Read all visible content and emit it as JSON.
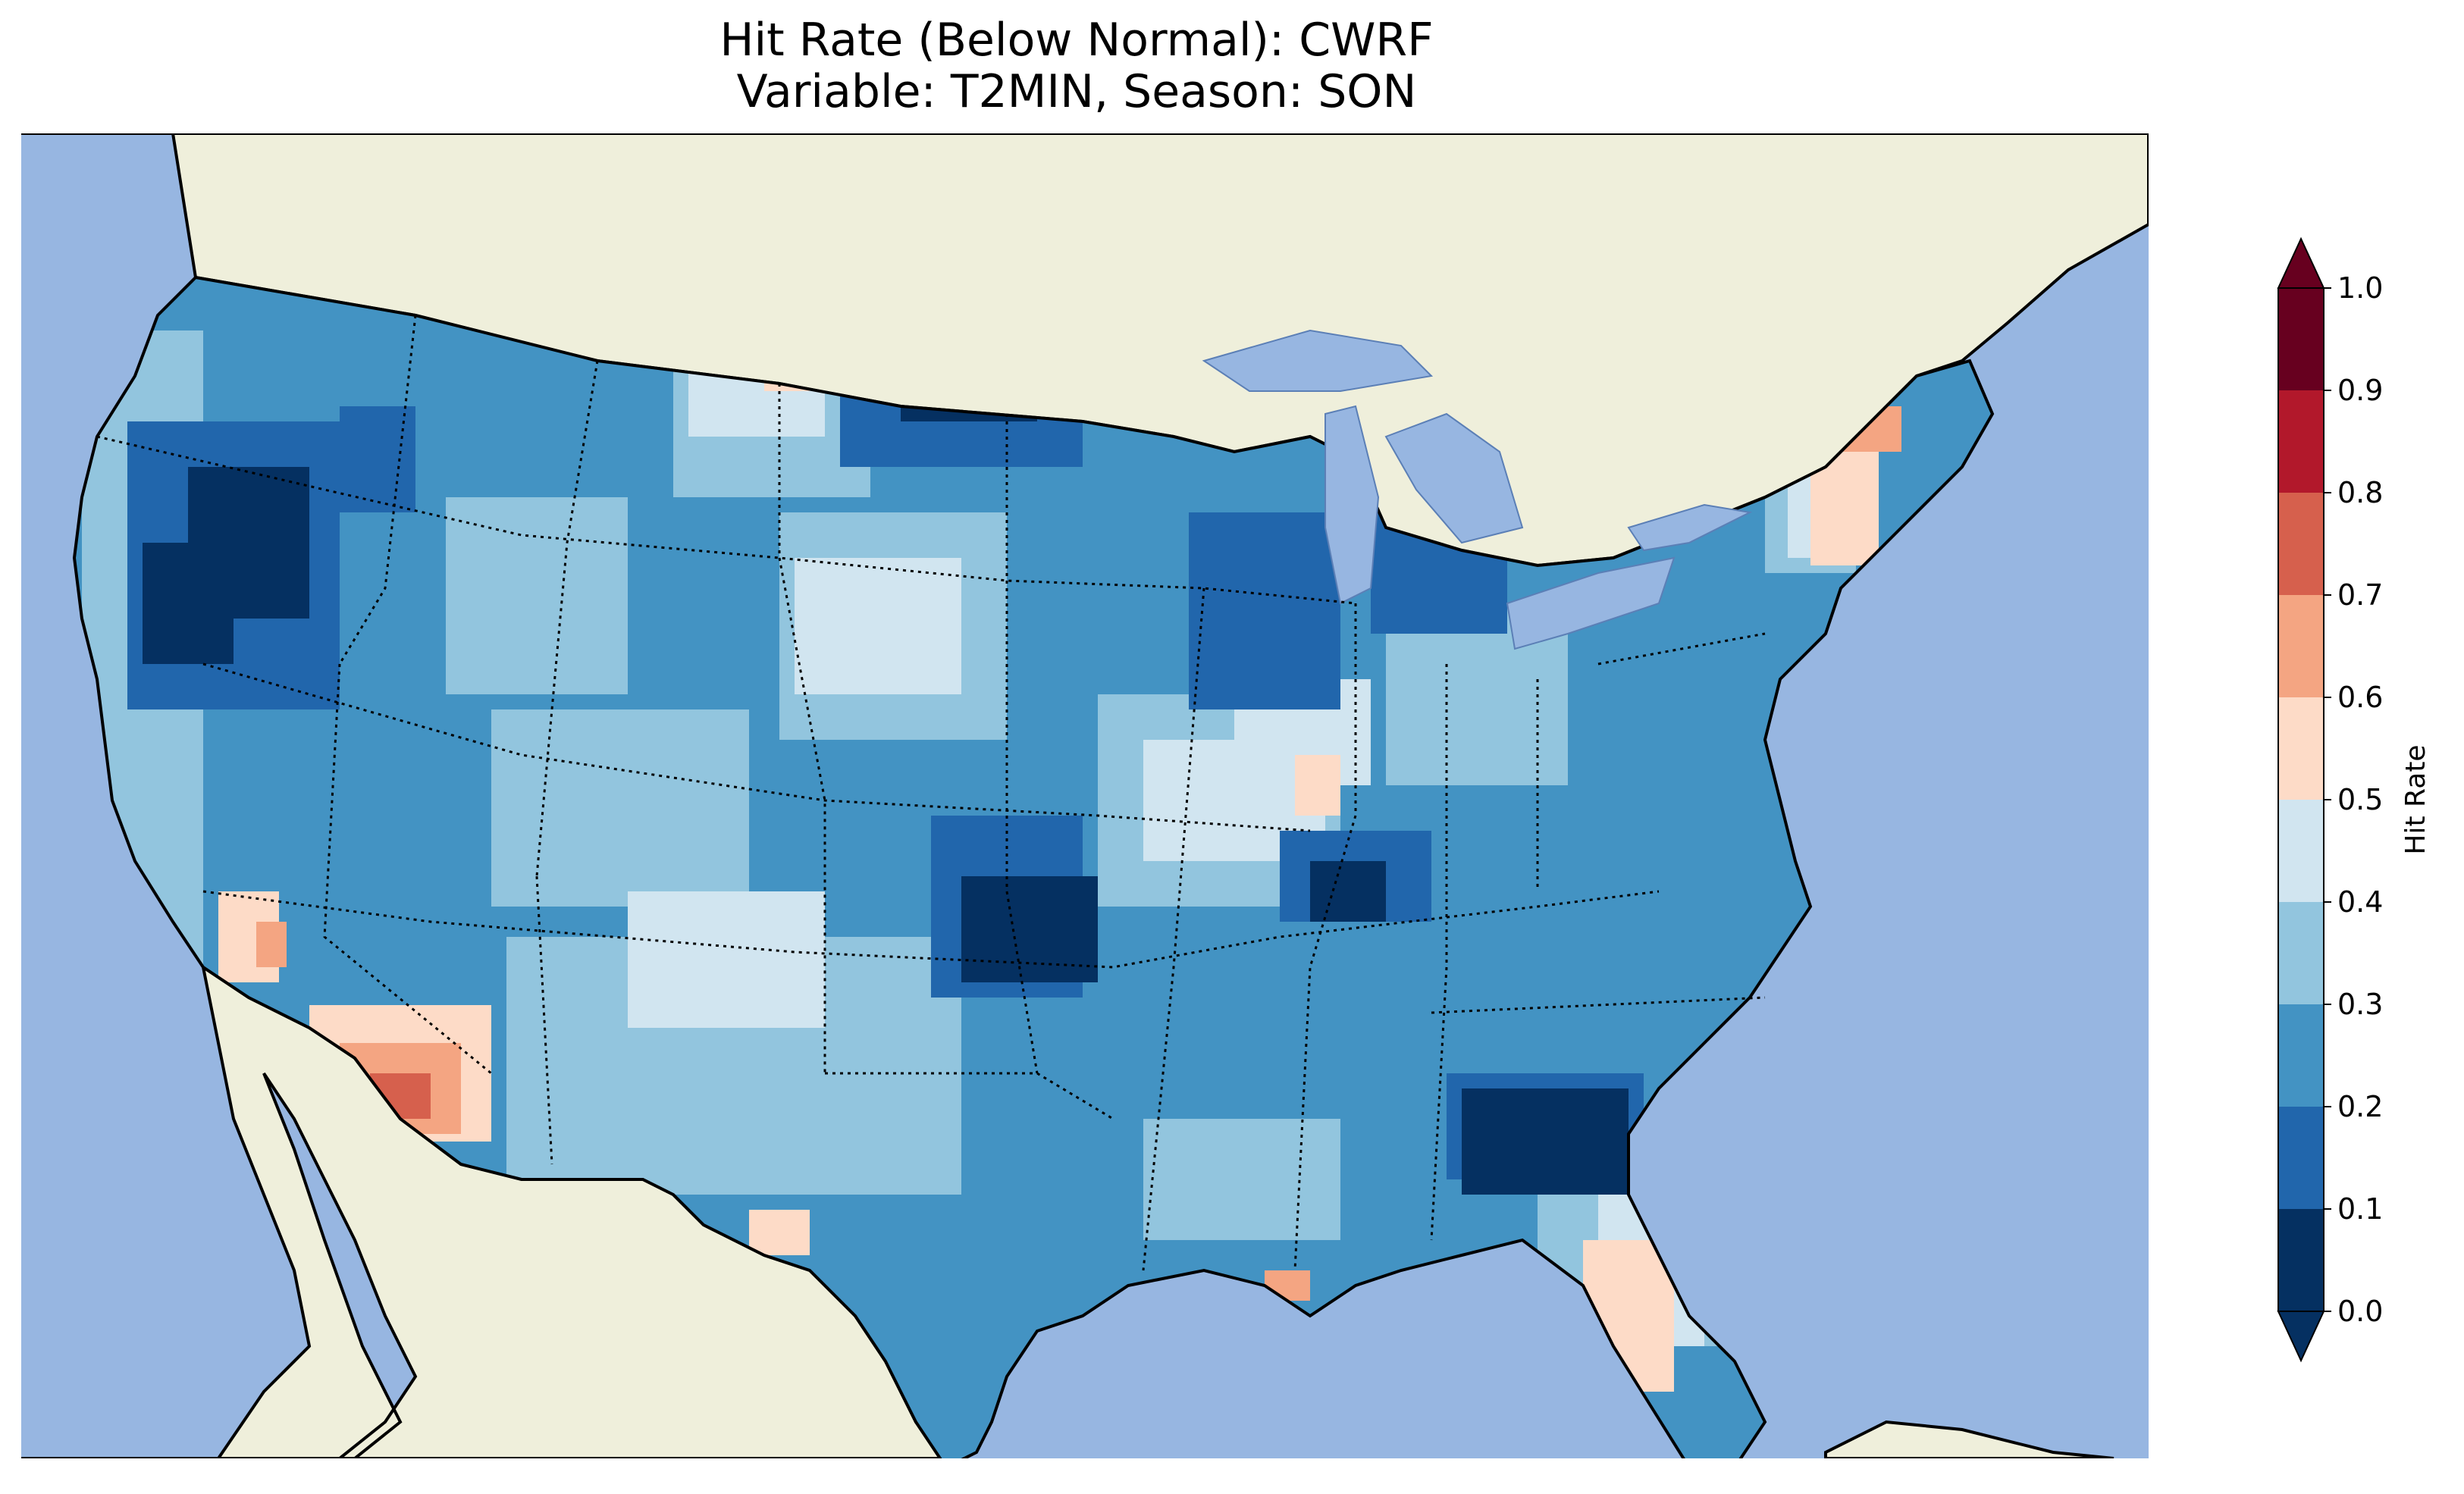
{
  "title": {
    "line1": "Hit Rate (Below Normal): CWRF",
    "line2": "Variable: T2MIN, Season: SON"
  },
  "map": {
    "ocean_color": "#97b6e1",
    "land_color": "#efefdb",
    "lake_color": "#97b6e1"
  },
  "colorbar": {
    "label": "Hit Rate",
    "ticks": [
      "0.0",
      "0.1",
      "0.2",
      "0.3",
      "0.4",
      "0.5",
      "0.6",
      "0.7",
      "0.8",
      "0.9",
      "1.0"
    ],
    "colors": [
      "#053061",
      "#2166ac",
      "#4393c3",
      "#92c5de",
      "#d1e5f0",
      "#fddbc7",
      "#f4a582",
      "#d6604d",
      "#b2182b",
      "#67001f"
    ],
    "extend": "both"
  }
}
